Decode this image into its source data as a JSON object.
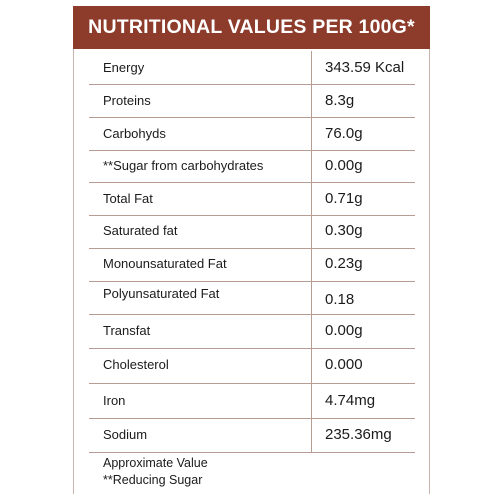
{
  "header": {
    "title": "NUTRITIONAL VALUES PER 100G*"
  },
  "rows": [
    {
      "name": "Energy",
      "value": "343.59 Kcal"
    },
    {
      "name": "Proteins",
      "value": "8.3g"
    },
    {
      "name": "Carbohyds",
      "value": "76.0g"
    },
    {
      "name": "**Sugar from carbohydrates",
      "value": "0.00g"
    },
    {
      "name": "Total Fat",
      "value": "0.71g"
    },
    {
      "name": "Saturated fat",
      "value": "0.30g"
    },
    {
      "name": "Monounsaturated Fat",
      "value": "0.23g"
    },
    {
      "name": "Polyunsaturated Fat",
      "value": "0.18"
    },
    {
      "name": "Transfat",
      "value": "0.00g"
    },
    {
      "name": "Cholesterol",
      "value": "0.000"
    },
    {
      "name": "Iron",
      "value": "4.74mg"
    },
    {
      "name": "Sodium",
      "value": "235.36mg"
    }
  ],
  "footnote": {
    "line1": "Approximate Value",
    "line2": "**Reducing Sugar"
  },
  "colors": {
    "header_bg": "#8d3b2b",
    "header_text": "#ffffff",
    "divider": "#b79c93"
  }
}
